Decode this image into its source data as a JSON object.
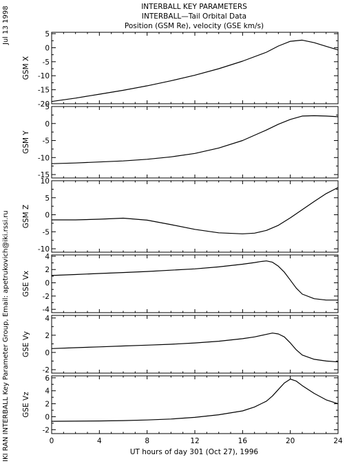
{
  "header": {
    "title_line1": "INTERBALL KEY PARAMETERS",
    "title_line2": "INTERBALL—Tail Orbital Data",
    "title_line3": "Position (GSM Re), velocity (GSE km/s)"
  },
  "side_labels": {
    "date": "Jul 13 1998",
    "credit": "IKI RAN INTERBALL Key Parameter Group, Email: apetrukovich@iki.rssi.ru"
  },
  "x_axis": {
    "label": "UT hours of day 301 (Oct 27), 1996",
    "range": [
      0,
      24
    ],
    "ticks": [
      0,
      4,
      8,
      12,
      16,
      20,
      24
    ],
    "tick_labels": [
      "0",
      "4",
      "8",
      "12",
      "16",
      "20",
      "24"
    ]
  },
  "chart_data": [
    {
      "type": "line",
      "ylabel": "GSM X",
      "ylim": [
        -20,
        5.5
      ],
      "yticks": [
        -20,
        -15,
        -10,
        -5,
        0,
        5
      ],
      "ytick_labels": [
        "-20",
        "-15",
        "-10",
        "-5",
        "0",
        "5"
      ],
      "x": [
        0,
        2,
        4,
        6,
        8,
        10,
        12,
        14,
        16,
        18,
        19,
        20,
        21,
        22,
        23,
        24
      ],
      "values": [
        -19.2,
        -18.0,
        -16.6,
        -15.2,
        -13.6,
        -11.8,
        -9.8,
        -7.5,
        -4.8,
        -1.6,
        0.6,
        2.3,
        2.7,
        1.8,
        0.5,
        -0.8
      ]
    },
    {
      "type": "line",
      "ylabel": "GSM Y",
      "ylim": [
        -16,
        5
      ],
      "yticks": [
        -15,
        -10,
        -5,
        0,
        5
      ],
      "ytick_labels": [
        "-15",
        "-10",
        "-5",
        "0",
        "5"
      ],
      "x": [
        0,
        2,
        4,
        6,
        8,
        10,
        12,
        14,
        16,
        18,
        19,
        20,
        21,
        22,
        23,
        24
      ],
      "values": [
        -11.8,
        -11.6,
        -11.3,
        -11.0,
        -10.5,
        -9.8,
        -8.8,
        -7.2,
        -5.0,
        -1.9,
        -0.2,
        1.2,
        2.2,
        2.3,
        2.2,
        2.0
      ]
    },
    {
      "type": "line",
      "ylabel": "GSM Z",
      "ylim": [
        -11,
        10
      ],
      "yticks": [
        -10,
        -5,
        0,
        5,
        10
      ],
      "ytick_labels": [
        "-10",
        "-5",
        "0",
        "5",
        "10"
      ],
      "x": [
        0,
        2,
        4,
        6,
        8,
        10,
        12,
        14,
        16,
        17,
        18,
        19,
        20,
        21,
        22,
        23,
        24
      ],
      "values": [
        -1.5,
        -1.5,
        -1.3,
        -1.0,
        -1.6,
        -2.9,
        -4.3,
        -5.3,
        -5.6,
        -5.4,
        -4.6,
        -3.1,
        -0.9,
        1.5,
        3.9,
        6.2,
        8.0
      ]
    },
    {
      "type": "line",
      "ylabel": "GSE Vx",
      "ylim": [
        -4.5,
        4.2
      ],
      "yticks": [
        -4,
        -2,
        0,
        2,
        4
      ],
      "ytick_labels": [
        "-4",
        "-2",
        "0",
        "2",
        "4"
      ],
      "x": [
        0,
        2,
        4,
        6,
        8,
        10,
        12,
        14,
        16,
        17,
        17.5,
        18,
        18.5,
        19,
        19.5,
        20,
        20.5,
        21,
        22,
        23,
        24
      ],
      "values": [
        1.1,
        1.25,
        1.4,
        1.55,
        1.7,
        1.9,
        2.1,
        2.4,
        2.8,
        3.05,
        3.2,
        3.3,
        3.1,
        2.5,
        1.6,
        0.4,
        -0.8,
        -1.7,
        -2.4,
        -2.6,
        -2.6
      ]
    },
    {
      "type": "line",
      "ylabel": "GSE Vy",
      "ylim": [
        -2.4,
        4.3
      ],
      "yticks": [
        -2,
        0,
        2,
        4
      ],
      "ytick_labels": [
        "-2",
        "0",
        "2",
        "4"
      ],
      "x": [
        0,
        2,
        4,
        6,
        8,
        10,
        12,
        14,
        16,
        17,
        18,
        18.5,
        19,
        19.5,
        20,
        20.5,
        21,
        22,
        23,
        24
      ],
      "values": [
        0.45,
        0.55,
        0.65,
        0.75,
        0.85,
        0.95,
        1.1,
        1.3,
        1.6,
        1.8,
        2.1,
        2.25,
        2.15,
        1.8,
        1.1,
        0.3,
        -0.3,
        -0.8,
        -1.0,
        -1.1
      ]
    },
    {
      "type": "line",
      "ylabel": "GSE Vz",
      "ylim": [
        -2.6,
        6.3
      ],
      "yticks": [
        -2,
        0,
        2,
        4,
        6
      ],
      "ytick_labels": [
        "-2",
        "0",
        "2",
        "4",
        "6"
      ],
      "x": [
        0,
        2,
        4,
        6,
        8,
        10,
        12,
        14,
        16,
        17,
        18,
        18.5,
        19,
        19.5,
        20,
        20.5,
        21,
        22,
        23,
        24
      ],
      "values": [
        -0.7,
        -0.68,
        -0.65,
        -0.6,
        -0.5,
        -0.35,
        -0.1,
        0.3,
        0.9,
        1.5,
        2.4,
        3.2,
        4.2,
        5.2,
        5.8,
        5.5,
        4.8,
        3.6,
        2.6,
        2.0
      ]
    }
  ]
}
